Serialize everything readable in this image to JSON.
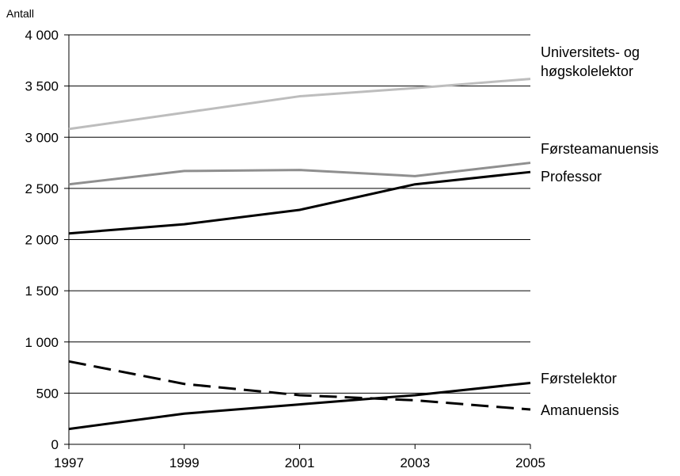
{
  "chart_data": {
    "type": "line",
    "title": "",
    "ylabel": "Antall",
    "xlabel": "",
    "x": [
      1997,
      1999,
      2001,
      2003,
      2005
    ],
    "ylim": [
      0,
      4000
    ],
    "yticks": [
      0,
      500,
      1000,
      1500,
      2000,
      2500,
      3000,
      3500,
      4000
    ],
    "ytick_labels": [
      "0",
      "500",
      "1 000",
      "1 500",
      "2 000",
      "2 500",
      "3 000",
      "3 500",
      "4 000"
    ],
    "xtick_labels": [
      "1997",
      "1999",
      "2001",
      "2003",
      "2005"
    ],
    "grid": "horizontal",
    "series": [
      {
        "name": "Universitets- og høgskolelektor",
        "label_lines": [
          "Universitets- og",
          "høgskolelektor"
        ],
        "values": [
          3080,
          3240,
          3400,
          3480,
          3570
        ],
        "color": "#bdbdbd",
        "dash": "solid"
      },
      {
        "name": "Førsteamanuensis",
        "label_lines": [
          "Førsteamanuensis"
        ],
        "values": [
          2540,
          2670,
          2680,
          2620,
          2750
        ],
        "color": "#8f8f8f",
        "dash": "solid"
      },
      {
        "name": "Professor",
        "label_lines": [
          "Professor"
        ],
        "values": [
          2060,
          2150,
          2290,
          2540,
          2660
        ],
        "color": "#000000",
        "dash": "solid"
      },
      {
        "name": "Førstelektor",
        "label_lines": [
          "Førstelektor"
        ],
        "values": [
          150,
          300,
          390,
          480,
          600
        ],
        "color": "#000000",
        "dash": "solid"
      },
      {
        "name": "Amanuensis",
        "label_lines": [
          "Amanuensis"
        ],
        "values": [
          810,
          590,
          480,
          430,
          340
        ],
        "color": "#000000",
        "dash": "dashed"
      }
    ]
  }
}
